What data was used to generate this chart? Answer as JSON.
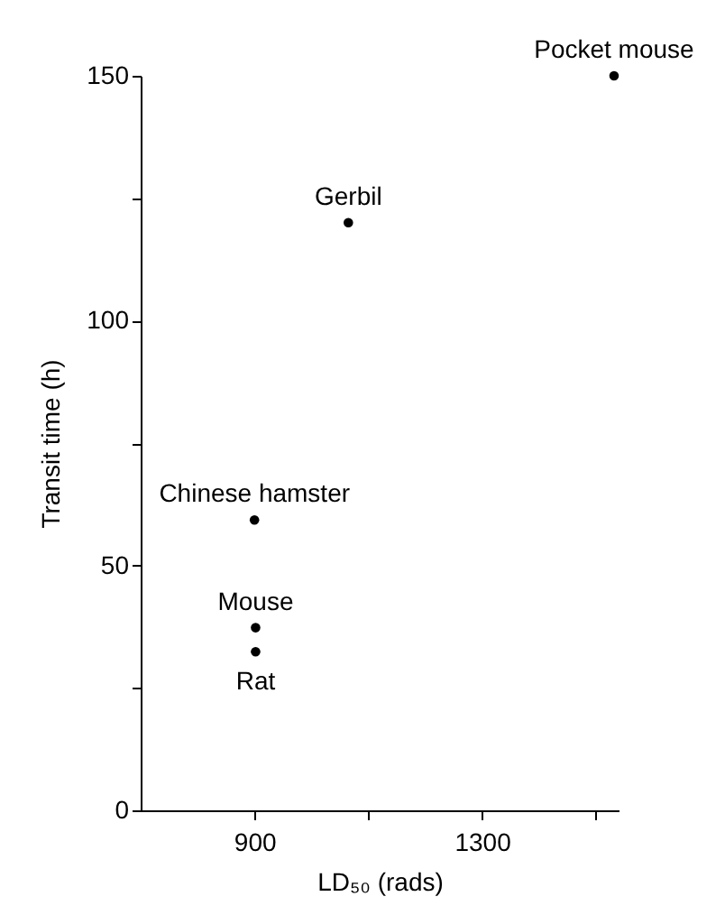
{
  "chart_data": {
    "type": "scatter",
    "xlabel": "LD₅₀ (rads)",
    "ylabel": "Transit time (h)",
    "x": [
      1532,
      1065,
      900,
      902,
      902
    ],
    "series": [
      {
        "color": "#000000",
        "values": [
          150,
          120,
          59.3,
          37.3,
          32.4
        ]
      }
    ],
    "marker": "circle",
    "grid": false,
    "xlim": [
      700,
      1540
    ],
    "xticks": [
      900,
      {
        "value": 1100,
        "label": null
      },
      1300,
      {
        "value": 1500,
        "label": null
      }
    ],
    "ylim": [
      0,
      150
    ],
    "yticks": [
      0,
      {
        "value": 25,
        "label": null
      },
      50,
      {
        "value": 75,
        "label": null
      },
      100,
      {
        "value": 125,
        "label": null
      },
      150
    ],
    "annotations": [
      {
        "text": "Pocket mouse",
        "x": 1532,
        "y": 150
      },
      {
        "text": "Gerbil",
        "x": 1065,
        "y": 120
      },
      {
        "text": "Chinese hamster",
        "x": 900,
        "y": 59.3
      },
      {
        "text": "Mouse",
        "x": 902,
        "y": 37.3
      },
      {
        "text": "Rat",
        "x": 902,
        "y": 32.4
      }
    ]
  }
}
